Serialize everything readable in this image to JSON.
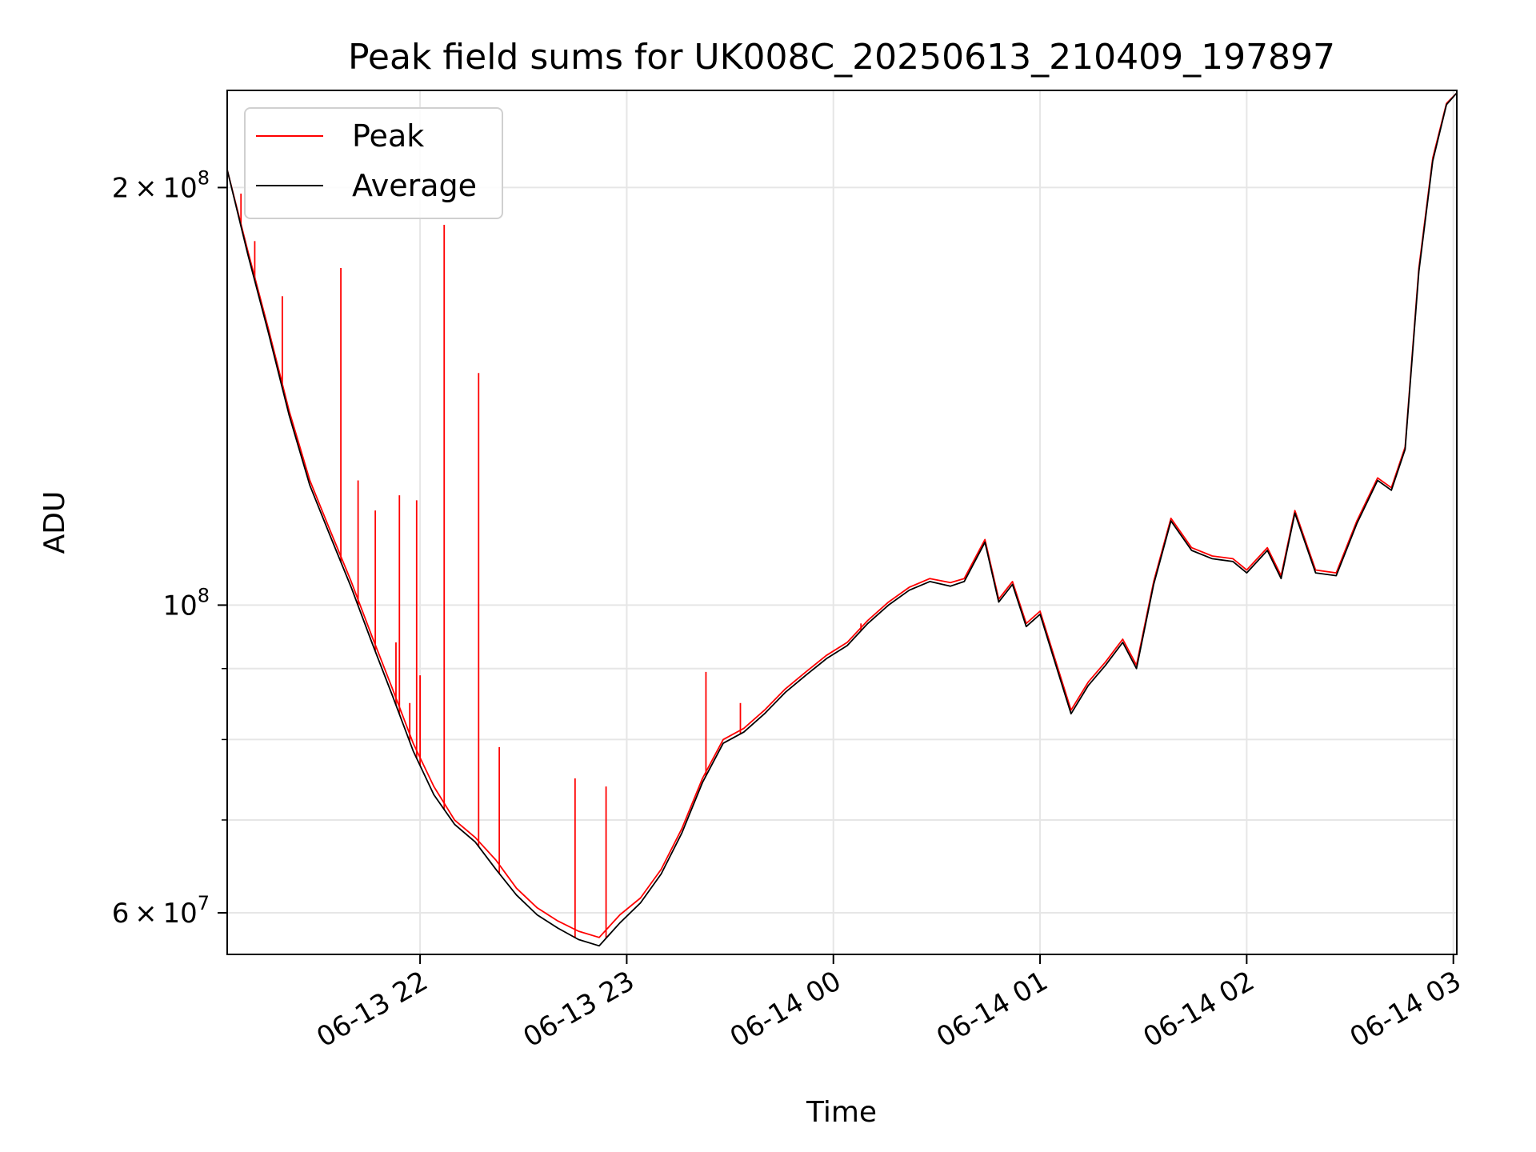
{
  "chart_data": {
    "type": "line",
    "title": "Peak field sums for UK008C_20250613_210409_197897",
    "xlabel": "Time",
    "ylabel": "ADU",
    "x_range": [
      "2025-06-13 21:04",
      "2025-06-14 03:01"
    ],
    "ylim": [
      56000000,
      235000000
    ],
    "yscale": "log",
    "grid": true,
    "legend_position": "top-left",
    "x_ticks": [
      {
        "time": "2025-06-13 22:00",
        "label": "06-13 22"
      },
      {
        "time": "2025-06-13 23:00",
        "label": "06-13 23"
      },
      {
        "time": "2025-06-14 00:00",
        "label": "06-14 00"
      },
      {
        "time": "2025-06-14 01:00",
        "label": "06-14 01"
      },
      {
        "time": "2025-06-14 02:00",
        "label": "06-14 02"
      },
      {
        "time": "2025-06-14 03:00",
        "label": "06-14 03"
      }
    ],
    "y_major_ticks": [
      {
        "value": 60000000,
        "mantissa": "6",
        "exponent": "7",
        "label": "6 × 10^7"
      },
      {
        "value": 100000000,
        "mantissa": "",
        "exponent": "8",
        "label": "10^8"
      },
      {
        "value": 200000000,
        "mantissa": "2",
        "exponent": "8",
        "label": "2 × 10^8"
      }
    ],
    "y_minor_ticks": [
      70000000,
      80000000,
      90000000
    ],
    "series": [
      {
        "name": "Peak",
        "color": "#ff0000",
        "points": [
          [
            "2025-06-13 21:04",
            206000000
          ],
          [
            "2025-06-13 21:10",
            180000000
          ],
          [
            "2025-06-13 21:16",
            158000000
          ],
          [
            "2025-06-13 21:22",
            138000000
          ],
          [
            "2025-06-13 21:28",
            123000000
          ],
          [
            "2025-06-13 21:34",
            113000000
          ],
          [
            "2025-06-13 21:40",
            104000000
          ],
          [
            "2025-06-13 21:46",
            95000000
          ],
          [
            "2025-06-13 21:52",
            87000000
          ],
          [
            "2025-06-13 21:58",
            79500000
          ],
          [
            "2025-06-13 22:04",
            74000000
          ],
          [
            "2025-06-13 22:10",
            70000000
          ],
          [
            "2025-06-13 22:16",
            68000000
          ],
          [
            "2025-06-13 22:22",
            65500000
          ],
          [
            "2025-06-13 22:28",
            62500000
          ],
          [
            "2025-06-13 22:34",
            60500000
          ],
          [
            "2025-06-13 22:40",
            59200000
          ],
          [
            "2025-06-13 22:46",
            58200000
          ],
          [
            "2025-06-13 22:52",
            57600000
          ],
          [
            "2025-06-13 22:58",
            59800000
          ],
          [
            "2025-06-13 23:04",
            61500000
          ],
          [
            "2025-06-13 23:10",
            64500000
          ],
          [
            "2025-06-13 23:16",
            69000000
          ],
          [
            "2025-06-13 23:22",
            75000000
          ],
          [
            "2025-06-13 23:28",
            80000000
          ],
          [
            "2025-06-13 23:34",
            81500000
          ],
          [
            "2025-06-13 23:40",
            84000000
          ],
          [
            "2025-06-13 23:46",
            87000000
          ],
          [
            "2025-06-13 23:52",
            89500000
          ],
          [
            "2025-06-13 23:58",
            92000000
          ],
          [
            "2025-06-14 00:04",
            94000000
          ],
          [
            "2025-06-14 00:10",
            97500000
          ],
          [
            "2025-06-14 00:16",
            100500000
          ],
          [
            "2025-06-14 00:22",
            103000000
          ],
          [
            "2025-06-14 00:28",
            104500000
          ],
          [
            "2025-06-14 00:34",
            103800000
          ],
          [
            "2025-06-14 00:38",
            104500000
          ],
          [
            "2025-06-14 00:44",
            111500000
          ],
          [
            "2025-06-14 00:48",
            101000000
          ],
          [
            "2025-06-14 00:52",
            104000000
          ],
          [
            "2025-06-14 00:56",
            97000000
          ],
          [
            "2025-06-14 01:00",
            99000000
          ],
          [
            "2025-06-14 01:04",
            92000000
          ],
          [
            "2025-06-14 01:09",
            84000000
          ],
          [
            "2025-06-14 01:14",
            88000000
          ],
          [
            "2025-06-14 01:19",
            91000000
          ],
          [
            "2025-06-14 01:24",
            94500000
          ],
          [
            "2025-06-14 01:28",
            90500000
          ],
          [
            "2025-06-14 01:33",
            104000000
          ],
          [
            "2025-06-14 01:38",
            115500000
          ],
          [
            "2025-06-14 01:44",
            110000000
          ],
          [
            "2025-06-14 01:50",
            108500000
          ],
          [
            "2025-06-14 01:56",
            108000000
          ],
          [
            "2025-06-14 02:00",
            106000000
          ],
          [
            "2025-06-14 02:06",
            110000000
          ],
          [
            "2025-06-14 02:10",
            105000000
          ],
          [
            "2025-06-14 02:14",
            117000000
          ],
          [
            "2025-06-14 02:20",
            106000000
          ],
          [
            "2025-06-14 02:26",
            105500000
          ],
          [
            "2025-06-14 02:32",
            115000000
          ],
          [
            "2025-06-14 02:38",
            123500000
          ],
          [
            "2025-06-14 02:42",
            121500000
          ],
          [
            "2025-06-14 02:46",
            130000000
          ],
          [
            "2025-06-14 02:50",
            175000000
          ],
          [
            "2025-06-14 02:54",
            210000000
          ],
          [
            "2025-06-14 02:58",
            230000000
          ],
          [
            "2025-06-14 03:01",
            234000000
          ]
        ]
      },
      {
        "name": "Average",
        "color": "#000000",
        "points": [
          [
            "2025-06-13 21:04",
            206000000
          ],
          [
            "2025-06-13 21:10",
            179000000
          ],
          [
            "2025-06-13 21:16",
            157000000
          ],
          [
            "2025-06-13 21:22",
            137000000
          ],
          [
            "2025-06-13 21:28",
            122000000
          ],
          [
            "2025-06-13 21:34",
            112000000
          ],
          [
            "2025-06-13 21:40",
            103000000
          ],
          [
            "2025-06-13 21:46",
            94000000
          ],
          [
            "2025-06-13 21:52",
            86000000
          ],
          [
            "2025-06-13 21:58",
            78500000
          ],
          [
            "2025-06-13 22:04",
            73000000
          ],
          [
            "2025-06-13 22:10",
            69500000
          ],
          [
            "2025-06-13 22:16",
            67500000
          ],
          [
            "2025-06-13 22:22",
            64500000
          ],
          [
            "2025-06-13 22:28",
            61800000
          ],
          [
            "2025-06-13 22:34",
            59800000
          ],
          [
            "2025-06-13 22:40",
            58500000
          ],
          [
            "2025-06-13 22:46",
            57400000
          ],
          [
            "2025-06-13 22:52",
            56800000
          ],
          [
            "2025-06-13 22:58",
            59000000
          ],
          [
            "2025-06-13 23:04",
            61000000
          ],
          [
            "2025-06-13 23:10",
            64000000
          ],
          [
            "2025-06-13 23:16",
            68500000
          ],
          [
            "2025-06-13 23:22",
            74500000
          ],
          [
            "2025-06-13 23:28",
            79500000
          ],
          [
            "2025-06-13 23:34",
            81000000
          ],
          [
            "2025-06-13 23:40",
            83500000
          ],
          [
            "2025-06-13 23:46",
            86500000
          ],
          [
            "2025-06-13 23:52",
            89000000
          ],
          [
            "2025-06-13 23:58",
            91500000
          ],
          [
            "2025-06-14 00:04",
            93500000
          ],
          [
            "2025-06-14 00:10",
            97000000
          ],
          [
            "2025-06-14 00:16",
            100000000
          ],
          [
            "2025-06-14 00:22",
            102500000
          ],
          [
            "2025-06-14 00:28",
            104000000
          ],
          [
            "2025-06-14 00:34",
            103200000
          ],
          [
            "2025-06-14 00:38",
            104000000
          ],
          [
            "2025-06-14 00:44",
            111000000
          ],
          [
            "2025-06-14 00:48",
            100500000
          ],
          [
            "2025-06-14 00:52",
            103500000
          ],
          [
            "2025-06-14 00:56",
            96500000
          ],
          [
            "2025-06-14 01:00",
            98500000
          ],
          [
            "2025-06-14 01:04",
            91500000
          ],
          [
            "2025-06-14 01:09",
            83500000
          ],
          [
            "2025-06-14 01:14",
            87500000
          ],
          [
            "2025-06-14 01:19",
            90500000
          ],
          [
            "2025-06-14 01:24",
            94000000
          ],
          [
            "2025-06-14 01:28",
            90000000
          ],
          [
            "2025-06-14 01:33",
            103500000
          ],
          [
            "2025-06-14 01:38",
            115000000
          ],
          [
            "2025-06-14 01:44",
            109500000
          ],
          [
            "2025-06-14 01:50",
            108000000
          ],
          [
            "2025-06-14 01:56",
            107500000
          ],
          [
            "2025-06-14 02:00",
            105500000
          ],
          [
            "2025-06-14 02:06",
            109500000
          ],
          [
            "2025-06-14 02:10",
            104500000
          ],
          [
            "2025-06-14 02:14",
            116500000
          ],
          [
            "2025-06-14 02:20",
            105500000
          ],
          [
            "2025-06-14 02:26",
            105000000
          ],
          [
            "2025-06-14 02:32",
            114500000
          ],
          [
            "2025-06-14 02:38",
            123000000
          ],
          [
            "2025-06-14 02:42",
            121000000
          ],
          [
            "2025-06-14 02:46",
            129500000
          ],
          [
            "2025-06-14 02:50",
            174000000
          ],
          [
            "2025-06-14 02:54",
            209000000
          ],
          [
            "2025-06-14 02:58",
            229500000
          ],
          [
            "2025-06-14 03:01",
            234000000
          ]
        ]
      }
    ],
    "peak_spikes": [
      [
        "2025-06-13 21:08",
        198000000
      ],
      [
        "2025-06-13 21:12",
        183000000
      ],
      [
        "2025-06-13 21:20",
        167000000
      ],
      [
        "2025-06-13 21:37",
        175000000
      ],
      [
        "2025-06-13 21:42",
        123000000
      ],
      [
        "2025-06-13 21:47",
        117000000
      ],
      [
        "2025-06-13 21:53",
        94000000
      ],
      [
        "2025-06-13 21:54",
        120000000
      ],
      [
        "2025-06-13 21:57",
        85000000
      ],
      [
        "2025-06-13 22:00",
        89000000
      ],
      [
        "2025-06-13 21:59",
        119000000
      ],
      [
        "2025-06-13 22:07",
        188000000
      ],
      [
        "2025-06-13 22:17",
        147000000
      ],
      [
        "2025-06-13 22:23",
        79000000
      ],
      [
        "2025-06-13 22:45",
        75000000
      ],
      [
        "2025-06-13 22:54",
        74000000
      ],
      [
        "2025-06-13 23:23",
        89500000
      ],
      [
        "2025-06-13 23:33",
        85000000
      ],
      [
        "2025-06-14 00:08",
        97000000
      ]
    ]
  }
}
